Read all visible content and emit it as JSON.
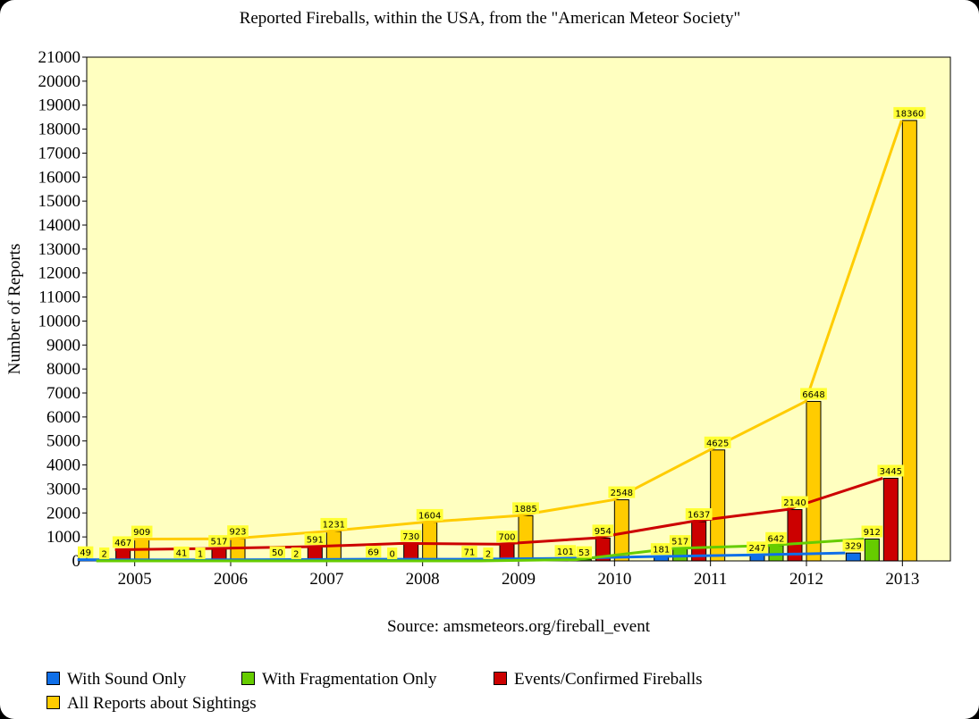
{
  "chart_data": {
    "type": "bar",
    "title": "Reported Fireballs, within the USA, from the \"American Meteor Society\"",
    "ylabel": "Number of Reports",
    "source": "Source: amsmeteors.org/fireball_event",
    "categories": [
      "2005",
      "2006",
      "2007",
      "2008",
      "2009",
      "2010",
      "2011",
      "2012",
      "2013"
    ],
    "ylim": [
      0,
      21000
    ],
    "y_ticks": [
      0,
      1000,
      2000,
      3000,
      4000,
      5000,
      6000,
      7000,
      8000,
      9000,
      10000,
      11000,
      12000,
      13000,
      14000,
      15000,
      16000,
      17000,
      18000,
      19000,
      20000,
      21000
    ],
    "plot_background": "#ffffc0",
    "trend_lines": true,
    "legend_position": "bottom",
    "series": [
      {
        "name": "With Sound Only",
        "color": "#0f6fe8",
        "values": [
          49,
          41,
          50,
          69,
          71,
          101,
          181,
          247,
          329
        ]
      },
      {
        "name": "With Fragmentation Only",
        "color": "#66cc00",
        "values": [
          2,
          1,
          2,
          0,
          2,
          53,
          517,
          642,
          912
        ]
      },
      {
        "name": "Events/Confirmed Fireballs",
        "color": "#cc0000",
        "values": [
          467,
          517,
          591,
          730,
          700,
          954,
          1637,
          2140,
          3445
        ]
      },
      {
        "name": "All Reports about Sightings",
        "color": "#ffcc00",
        "values": [
          909,
          923,
          1231,
          1604,
          1885,
          2548,
          4625,
          6648,
          18360
        ]
      }
    ]
  }
}
